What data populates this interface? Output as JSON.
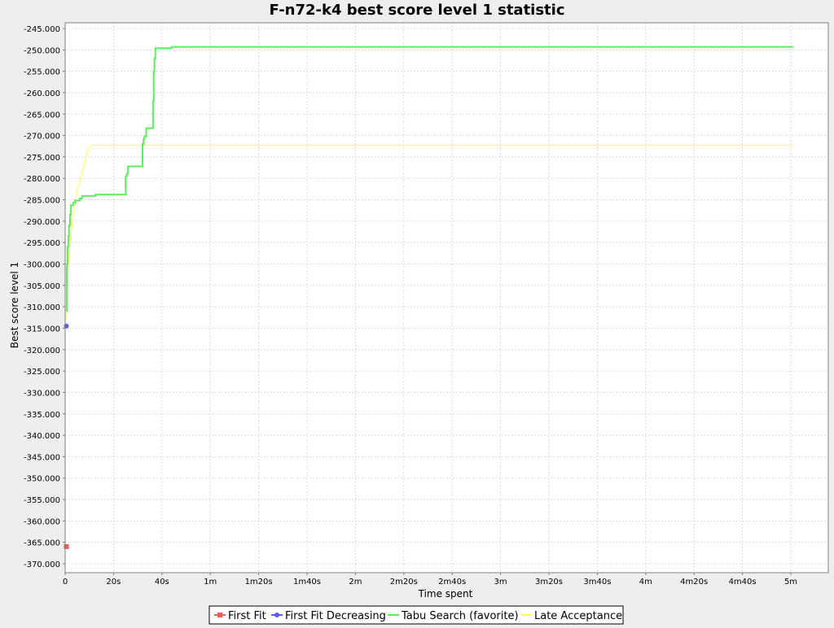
{
  "chart_data": {
    "type": "line",
    "title": "F-n72-k4 best score level 1 statistic",
    "xlabel": "Time spent",
    "ylabel": "Best score level 1",
    "x_unit": "seconds",
    "xlim": [
      0,
      315
    ],
    "ylim": [
      -372000,
      -243000
    ],
    "x_ticks": [
      {
        "value": 0,
        "label": "0"
      },
      {
        "value": 20,
        "label": "20s"
      },
      {
        "value": 40,
        "label": "40s"
      },
      {
        "value": 60,
        "label": "1m"
      },
      {
        "value": 80,
        "label": "1m20s"
      },
      {
        "value": 100,
        "label": "1m40s"
      },
      {
        "value": 120,
        "label": "2m"
      },
      {
        "value": 140,
        "label": "2m20s"
      },
      {
        "value": 160,
        "label": "2m40s"
      },
      {
        "value": 180,
        "label": "3m"
      },
      {
        "value": 200,
        "label": "3m20s"
      },
      {
        "value": 220,
        "label": "3m40s"
      },
      {
        "value": 240,
        "label": "4m"
      },
      {
        "value": 260,
        "label": "4m20s"
      },
      {
        "value": 280,
        "label": "4m40s"
      },
      {
        "value": 300,
        "label": "5m"
      }
    ],
    "y_ticks": [
      {
        "value": -245000,
        "label": "-245.000"
      },
      {
        "value": -250000,
        "label": "-250.000"
      },
      {
        "value": -255000,
        "label": "-255.000"
      },
      {
        "value": -260000,
        "label": "-260.000"
      },
      {
        "value": -265000,
        "label": "-265.000"
      },
      {
        "value": -270000,
        "label": "-270.000"
      },
      {
        "value": -275000,
        "label": "-275.000"
      },
      {
        "value": -280000,
        "label": "-280.000"
      },
      {
        "value": -285000,
        "label": "-285.000"
      },
      {
        "value": -290000,
        "label": "-290.000"
      },
      {
        "value": -295000,
        "label": "-295.000"
      },
      {
        "value": -300000,
        "label": "-300.000"
      },
      {
        "value": -305000,
        "label": "-305.000"
      },
      {
        "value": -310000,
        "label": "-310.000"
      },
      {
        "value": -315000,
        "label": "-315.000"
      },
      {
        "value": -320000,
        "label": "-320.000"
      },
      {
        "value": -325000,
        "label": "-325.000"
      },
      {
        "value": -330000,
        "label": "-330.000"
      },
      {
        "value": -335000,
        "label": "-335.000"
      },
      {
        "value": -340000,
        "label": "-340.000"
      },
      {
        "value": -345000,
        "label": "-345.000"
      },
      {
        "value": -350000,
        "label": "-350.000"
      },
      {
        "value": -355000,
        "label": "-355.000"
      },
      {
        "value": -360000,
        "label": "-360.000"
      },
      {
        "value": -365000,
        "label": "-365.000"
      },
      {
        "value": -370000,
        "label": "-370.000"
      }
    ],
    "grid": true,
    "legend_position": "bottom-center",
    "series": [
      {
        "name": "First Fit",
        "color": "#f05b5b",
        "marker": "square",
        "step": true,
        "line_width": 1.5,
        "points": [
          [
            0.5,
            -366000
          ]
        ]
      },
      {
        "name": "First Fit Decreasing",
        "color": "#5b5bf0",
        "marker": "circle",
        "step": true,
        "line_width": 1.5,
        "points": [
          [
            0.5,
            -314500
          ]
        ]
      },
      {
        "name": "Tabu Search (favorite)",
        "color": "#5bf05b",
        "marker": "none",
        "step": true,
        "line_width": 2,
        "points": [
          [
            0.5,
            -311000
          ],
          [
            0.7,
            -300000
          ],
          [
            1.0,
            -296000
          ],
          [
            1.3,
            -293500
          ],
          [
            1.6,
            -291000
          ],
          [
            2.0,
            -288500
          ],
          [
            2.4,
            -286300
          ],
          [
            3.3,
            -285700
          ],
          [
            4.0,
            -285200
          ],
          [
            6.0,
            -284700
          ],
          [
            7.0,
            -284100
          ],
          [
            12.5,
            -283800
          ],
          [
            25.0,
            -279500
          ],
          [
            25.5,
            -278900
          ],
          [
            26.0,
            -277200
          ],
          [
            32.0,
            -272000
          ],
          [
            32.4,
            -270800
          ],
          [
            32.8,
            -270200
          ],
          [
            33.5,
            -268300
          ],
          [
            36.3,
            -262000
          ],
          [
            36.6,
            -255000
          ],
          [
            36.9,
            -252000
          ],
          [
            37.3,
            -249600
          ],
          [
            44.0,
            -249300
          ],
          [
            301.0,
            -249300
          ]
        ]
      },
      {
        "name": "Late Acceptance",
        "color": "#ffff66",
        "marker": "none",
        "step": false,
        "line_width": 1.2,
        "points": [
          [
            0.3,
            -313000
          ],
          [
            0.8,
            -306000
          ],
          [
            1.3,
            -300000
          ],
          [
            2.0,
            -295000
          ],
          [
            2.8,
            -291000
          ],
          [
            3.5,
            -288000
          ],
          [
            4.2,
            -285500
          ],
          [
            5.0,
            -283000
          ],
          [
            6.0,
            -280500
          ],
          [
            7.0,
            -278500
          ],
          [
            8.0,
            -276500
          ],
          [
            9.0,
            -274000
          ],
          [
            10.0,
            -272800
          ],
          [
            11.0,
            -272300
          ],
          [
            301.0,
            -272300
          ]
        ]
      }
    ]
  }
}
